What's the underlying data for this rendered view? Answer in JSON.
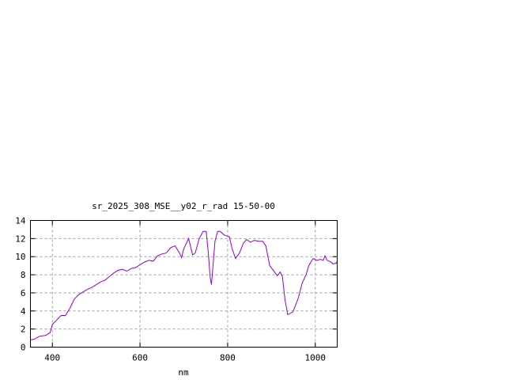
{
  "chart_data": {
    "type": "line",
    "title": "sr_2025_308_MSE__y02_r_rad 15-50-00",
    "xlabel": "nm",
    "ylabel": "",
    "xlim": [
      350,
      1050
    ],
    "ylim": [
      0,
      14
    ],
    "xticks": [
      400,
      600,
      800,
      1000
    ],
    "yticks": [
      0,
      2,
      4,
      6,
      8,
      10,
      12,
      14
    ],
    "grid": true,
    "legend": "none",
    "line_color": "#9400d3",
    "x": [
      350,
      360,
      370,
      385,
      395,
      400,
      410,
      420,
      430,
      440,
      450,
      460,
      470,
      480,
      490,
      500,
      510,
      520,
      530,
      540,
      550,
      560,
      570,
      580,
      590,
      600,
      610,
      620,
      630,
      640,
      650,
      660,
      670,
      680,
      690,
      695,
      700,
      711,
      720,
      726,
      735,
      744,
      751,
      756,
      760,
      763,
      767,
      771,
      777,
      783,
      792,
      804,
      810,
      818,
      827,
      836,
      843,
      852,
      861,
      871,
      880,
      887,
      896,
      904,
      913,
      920,
      925,
      931,
      937,
      949,
      961,
      970,
      979,
      985,
      995,
      1003,
      1012,
      1018,
      1022,
      1027,
      1036,
      1040,
      1048,
      1050
    ],
    "y": [
      0.8,
      0.9,
      1.2,
      1.3,
      1.6,
      2.5,
      3.0,
      3.5,
      3.5,
      4.3,
      5.3,
      5.8,
      6.1,
      6.4,
      6.6,
      6.9,
      7.2,
      7.4,
      7.8,
      8.2,
      8.5,
      8.6,
      8.4,
      8.7,
      8.8,
      9.1,
      9.4,
      9.6,
      9.5,
      10.1,
      10.3,
      10.4,
      11.0,
      11.2,
      10.4,
      9.9,
      10.9,
      12.0,
      10.2,
      10.4,
      12.0,
      12.8,
      12.8,
      10.4,
      7.7,
      6.9,
      9.2,
      11.7,
      12.8,
      12.8,
      12.4,
      12.2,
      10.9,
      9.8,
      10.4,
      11.5,
      11.9,
      11.6,
      11.8,
      11.7,
      11.7,
      11.2,
      9.0,
      8.5,
      7.9,
      8.3,
      7.8,
      5.2,
      3.6,
      3.9,
      5.4,
      7.1,
      8.0,
      9.0,
      9.8,
      9.6,
      9.7,
      9.6,
      10.1,
      9.6,
      9.4,
      9.2,
      9.3,
      9.5
    ]
  }
}
